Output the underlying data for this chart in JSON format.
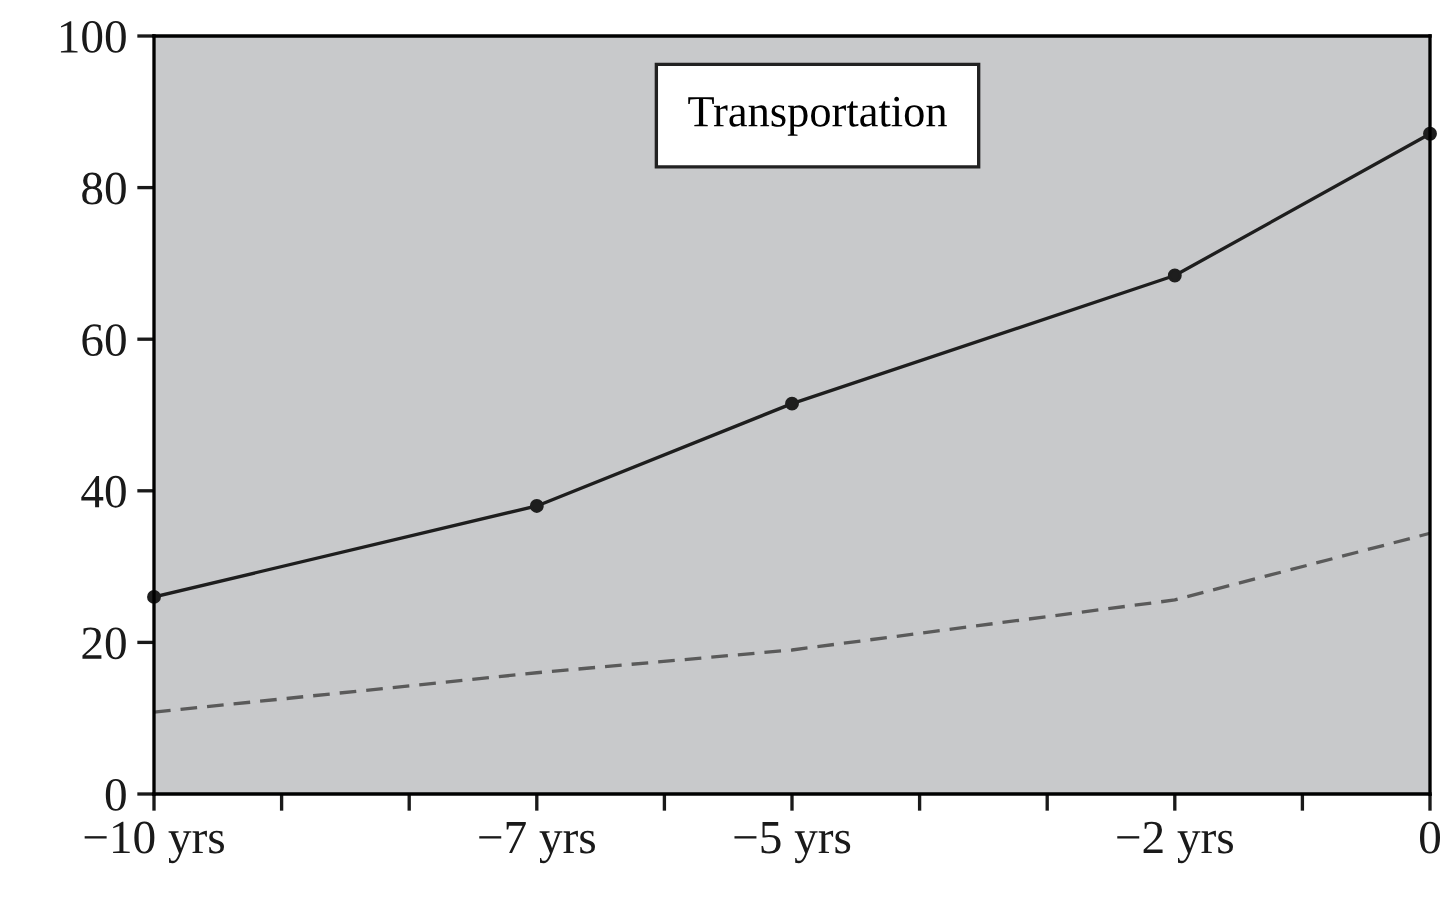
{
  "chart_data": {
    "type": "line",
    "title": "Transportation",
    "x": [
      -10,
      -7,
      -5,
      -2,
      0
    ],
    "series": [
      {
        "color": "#1e1e1e",
        "values": [
          26,
          38,
          51.5,
          68.4,
          87.1
        ],
        "line_style": "solid",
        "marker": "circle"
      },
      {
        "color": "#5a5a5a",
        "values": [
          10.8,
          16,
          19,
          25.6,
          34.4
        ],
        "line_style": "dashed",
        "marker": "none"
      }
    ],
    "xlim": [
      -10,
      0
    ],
    "xticks": [
      {
        "value": -10,
        "label": "−10 yrs"
      },
      {
        "value": -9,
        "label": null
      },
      {
        "value": -8,
        "label": null
      },
      {
        "value": -7,
        "label": "−7 yrs"
      },
      {
        "value": -6,
        "label": null
      },
      {
        "value": -5,
        "label": "−5 yrs"
      },
      {
        "value": -4,
        "label": null
      },
      {
        "value": -3,
        "label": null
      },
      {
        "value": -2,
        "label": "−2 yrs"
      },
      {
        "value": -1,
        "label": null
      },
      {
        "value": 0,
        "label": "0"
      }
    ],
    "ylim": [
      0,
      100
    ],
    "yticks": [
      0,
      20,
      40,
      60,
      80,
      100
    ],
    "grid": false,
    "legend": false
  }
}
